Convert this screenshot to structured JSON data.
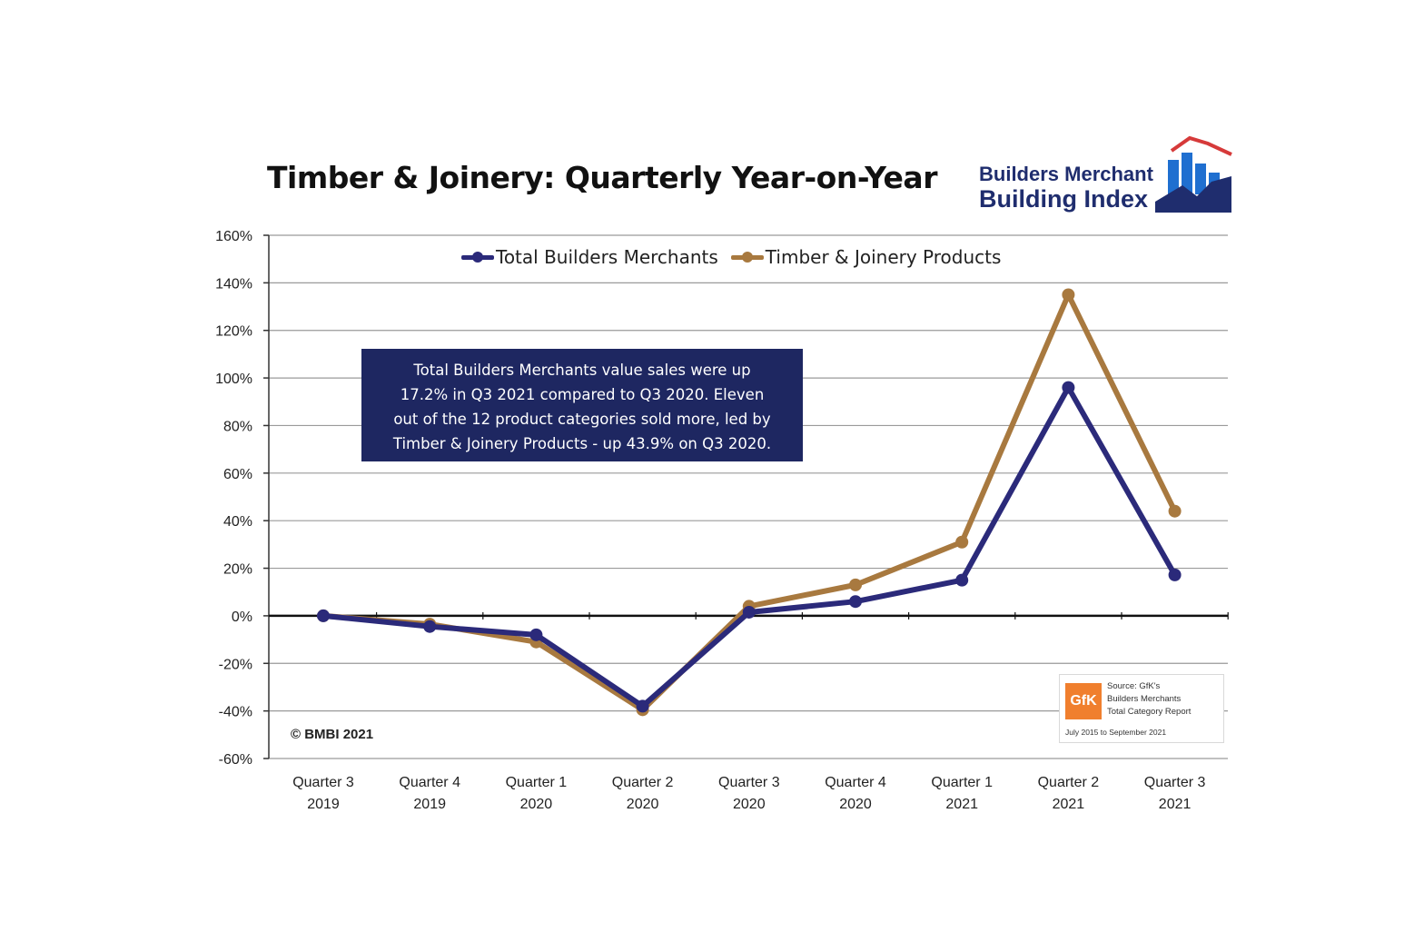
{
  "logo": {
    "line1": "Builders Merchant",
    "line2": "Building Index"
  },
  "colors": {
    "total": "#2b2a7a",
    "timber": "#a8793f",
    "annotation_bg": "#1e2761",
    "brand_blue": "#1f2d6e",
    "brand_red": "#d63a3a",
    "gfk_orange": "#f07f2e"
  },
  "annotation": {
    "lines": [
      "Total Builders Merchants value sales were up",
      "17.2% in Q3 2021 compared to Q3 2020. Eleven",
      "out of the 12 product categories sold more, led by",
      "Timber & Joinery Products - up 43.9% on Q3 2020."
    ]
  },
  "copyright": "© BMBI 2021",
  "source": {
    "badge": "GfK",
    "lines": [
      "Source: GfK's",
      "Builders Merchants",
      "Total Category Report"
    ],
    "footer": "July 2015 to September 2021"
  },
  "chart_data": {
    "type": "line",
    "title": "Timber & Joinery: Quarterly Year-on-Year",
    "categories": [
      [
        "Quarter 3",
        "2019"
      ],
      [
        "Quarter 4",
        "2019"
      ],
      [
        "Quarter 1",
        "2020"
      ],
      [
        "Quarter 2",
        "2020"
      ],
      [
        "Quarter 3",
        "2020"
      ],
      [
        "Quarter 4",
        "2020"
      ],
      [
        "Quarter 1",
        "2021"
      ],
      [
        "Quarter 2",
        "2021"
      ],
      [
        "Quarter 3",
        "2021"
      ]
    ],
    "series": [
      {
        "name": "Total Builders Merchants",
        "values": [
          0,
          -4.5,
          -8,
          -38,
          1.5,
          6,
          15,
          96,
          17.2
        ]
      },
      {
        "name": "Timber & Joinery Products",
        "values": [
          0,
          -3.5,
          -11,
          -39.5,
          4,
          13,
          31,
          135,
          44
        ]
      }
    ],
    "ylim": [
      -60,
      160
    ],
    "yticks": [
      -60,
      -40,
      -20,
      0,
      20,
      40,
      60,
      80,
      100,
      120,
      140,
      160
    ],
    "ytick_labels": [
      "-60%",
      "-40%",
      "-20%",
      "0%",
      "20%",
      "40%",
      "60%",
      "80%",
      "100%",
      "120%",
      "140%",
      "160%"
    ],
    "grid": true,
    "legend_position": "top"
  }
}
